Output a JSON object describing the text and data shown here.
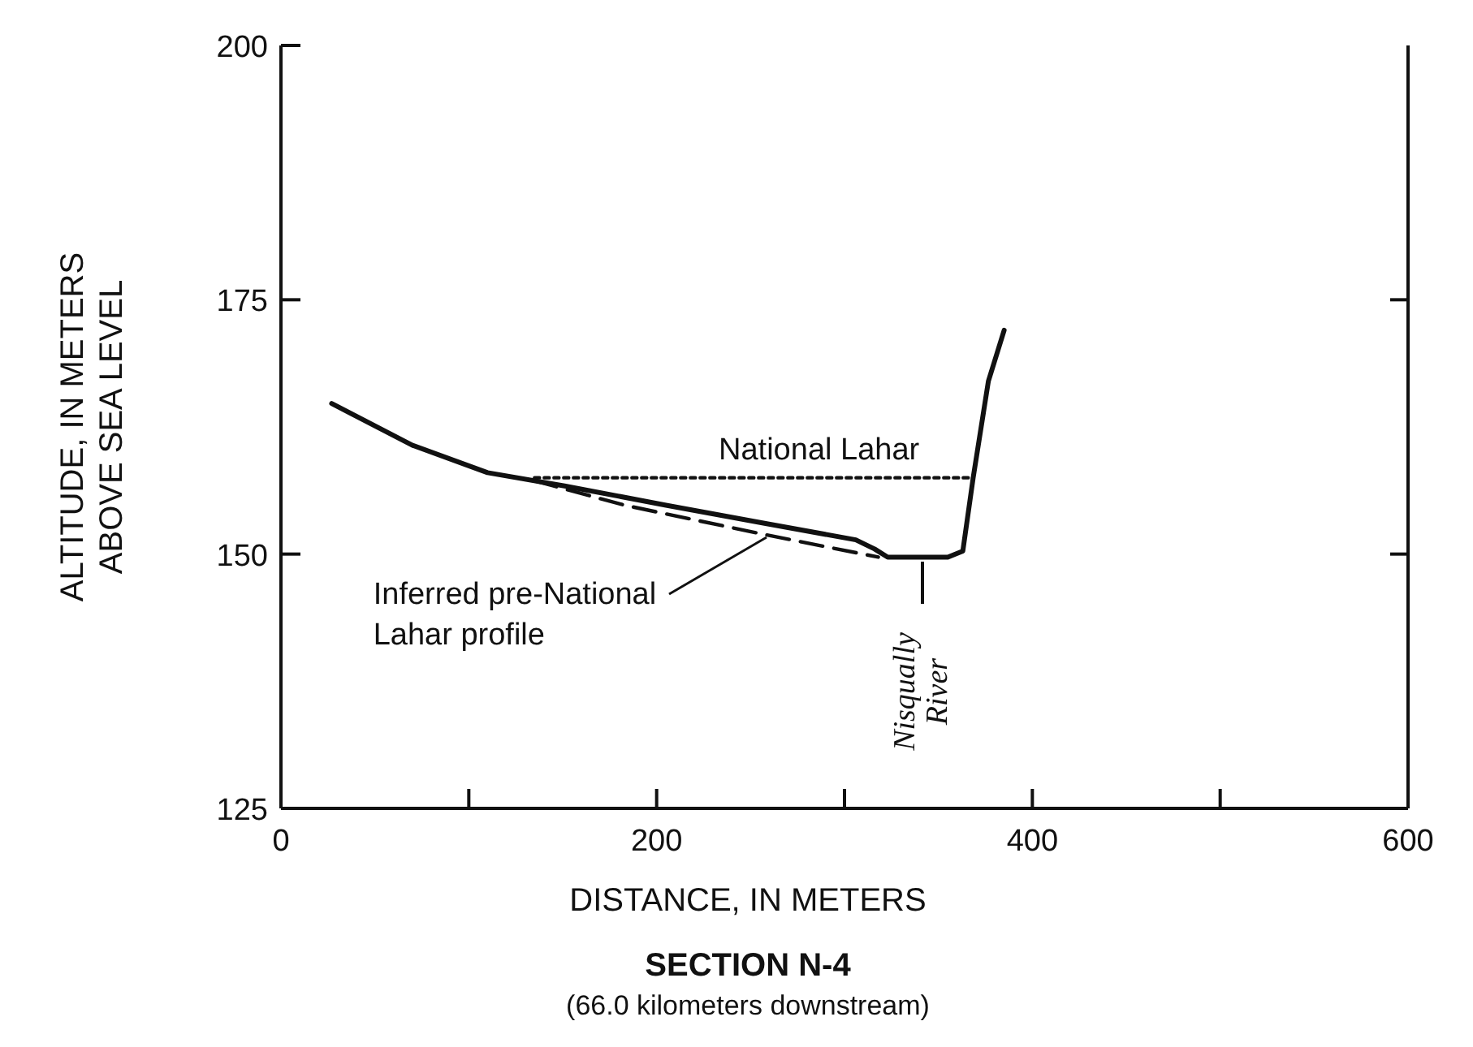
{
  "chart_data": {
    "type": "line",
    "title": "SECTION N-4",
    "subtitle": "(66.0 kilometers downstream)",
    "xlabel": "DISTANCE, IN METERS",
    "ylabel": "ALTITUDE, IN METERS ABOVE SEA LEVEL",
    "xlim": [
      0,
      600
    ],
    "xticks": [
      0,
      {
        "value": 100,
        "label": null
      },
      200,
      {
        "value": 300,
        "label": null
      },
      400,
      {
        "value": 500,
        "label": null
      },
      600
    ],
    "ylim": [
      125,
      200
    ],
    "yticks": [
      125,
      150,
      175,
      200
    ],
    "grid": false,
    "marker": "none",
    "series": [
      {
        "color": "#111111",
        "line_style": "solid",
        "x": [
          27,
          70,
          110,
          151,
          205,
          258,
          306,
          316,
          323,
          355,
          363,
          368.5,
          376.6,
          385
        ],
        "values": [
          164.8,
          160.7,
          158,
          156.7,
          154.8,
          153,
          151.4,
          150.5,
          149.7,
          149.7,
          150.3,
          157.5,
          167,
          172
        ]
      },
      {
        "name": "Inferred pre-National Lahar profile",
        "color": "#111111",
        "line_style": "dashed",
        "x": [
          135,
          183,
          258,
          318
        ],
        "values": [
          157.2,
          154.8,
          151.9,
          149.7
        ]
      },
      {
        "name": "National Lahar",
        "color": "#111111",
        "line_style": "dotted",
        "x": [
          135,
          368
        ],
        "values": [
          157.5,
          157.5
        ]
      }
    ],
    "annotations": [
      {
        "text": "Nisqually River",
        "x": 341,
        "y": 149.7
      }
    ]
  }
}
